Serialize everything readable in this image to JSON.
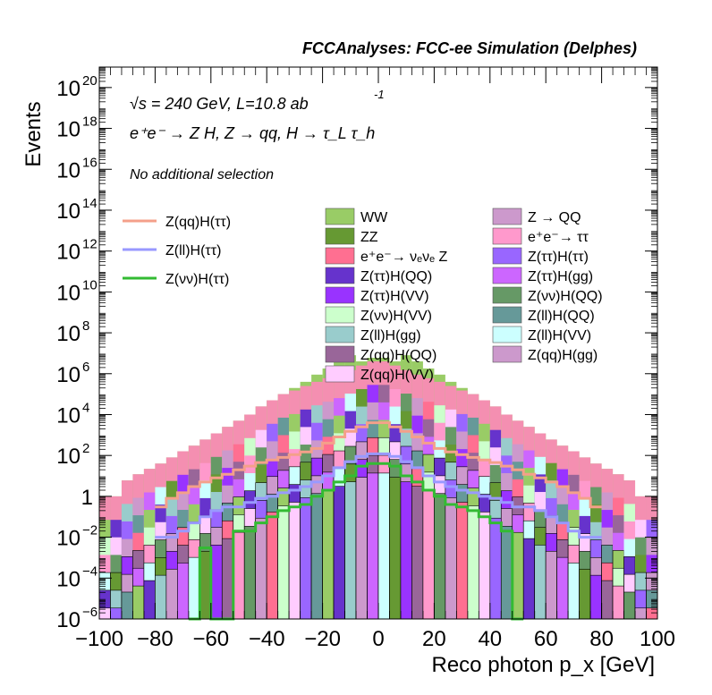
{
  "header": {
    "title": "FCCAnalyses: FCC-ee Simulation (Delphes)",
    "energy": "√s = 240 GeV, L=10.8 ab",
    "energy_sup": "-1",
    "process": "e⁺e⁻ → Z H, Z → qq, H → τ_L τ_h",
    "selection": "No additional selection"
  },
  "chart_data": {
    "type": "bar",
    "subtype": "stacked-histogram",
    "xlabel": "Reco photon p_x [GeV]",
    "ylabel": "Events",
    "xlim": [
      -100,
      100
    ],
    "ylim": [
      1e-06,
      1e+21
    ],
    "yscale": "log",
    "x_ticks": [
      "−100",
      "−80",
      "−60",
      "−40",
      "−20",
      "0",
      "20",
      "40",
      "60",
      "80",
      "100"
    ],
    "y_ticks": [
      {
        "base": "10",
        "exp": "20",
        "value": 1e+20
      },
      {
        "base": "10",
        "exp": "18",
        "value": 1e+18
      },
      {
        "base": "10",
        "exp": "16",
        "value": 1e+16
      },
      {
        "base": "10",
        "exp": "14",
        "value": 100000000000000.0
      },
      {
        "base": "10",
        "exp": "12",
        "value": 1000000000000.0
      },
      {
        "base": "10",
        "exp": "10",
        "value": 10000000000.0
      },
      {
        "base": "10",
        "exp": "8",
        "value": 100000000.0
      },
      {
        "base": "10",
        "exp": "6",
        "value": 1000000.0
      },
      {
        "base": "10",
        "exp": "4",
        "value": 10000.0
      },
      {
        "base": "10",
        "exp": "2",
        "value": 100.0
      },
      {
        "base": "1",
        "exp": "",
        "value": 1
      },
      {
        "base": "10",
        "exp": "−2",
        "value": 0.01
      },
      {
        "base": "10",
        "exp": "−4",
        "value": 0.0001
      },
      {
        "base": "10",
        "exp": "−6",
        "value": 1e-06
      }
    ],
    "bin_width": 4,
    "bin_centers": [
      -98,
      -94,
      -90,
      -86,
      -82,
      -78,
      -74,
      -70,
      -66,
      -62,
      -58,
      -54,
      -50,
      -46,
      -42,
      -38,
      -34,
      -30,
      -26,
      -22,
      -18,
      -14,
      -10,
      -6,
      -2,
      2,
      6,
      10,
      14,
      18,
      22,
      26,
      30,
      34,
      38,
      42,
      46,
      50,
      54,
      58,
      62,
      66,
      70,
      74,
      78,
      82,
      86,
      90,
      94,
      98
    ],
    "stack_totals": [
      1,
      1,
      6,
      12,
      22,
      40,
      80,
      160,
      300,
      600,
      1200,
      2500,
      5000,
      10000,
      25000,
      50000,
      100000,
      200000,
      400000,
      900000,
      1800000,
      4000000,
      8000000,
      4000000,
      6000000,
      6000000,
      4000000,
      8000000,
      4000000,
      1800000,
      900000,
      400000,
      200000,
      100000,
      50000,
      25000,
      10000,
      5000,
      2500,
      1200,
      600,
      300,
      160,
      80,
      40,
      22,
      12,
      6,
      1,
      1
    ],
    "background_fill": {
      "color": "#f48fb1",
      "values": [
        1,
        1,
        6,
        12,
        22,
        40,
        80,
        160,
        300,
        600,
        1200,
        2500,
        5000,
        10000,
        25000,
        50000,
        100000,
        150000,
        250000,
        400000,
        600000,
        900000,
        1500000,
        2500000,
        4000000,
        4000000,
        2500000,
        1500000,
        900000,
        600000,
        400000,
        250000,
        150000,
        100000,
        50000,
        25000,
        10000,
        5000,
        2500,
        1200,
        600,
        300,
        160,
        80,
        40,
        22,
        12,
        6,
        1,
        1
      ]
    },
    "stack_layers": [
      {
        "name": "WW",
        "color": "#99cc66"
      },
      {
        "name": "ZZ",
        "color": "#669933"
      },
      {
        "name": "e⁺e⁻→ νₑνₑ Z",
        "color": "#ff6f91"
      },
      {
        "name": "Z(ττ)H(QQ)",
        "color": "#6633cc"
      },
      {
        "name": "Z(ττ)H(VV)",
        "color": "#9933ff"
      },
      {
        "name": "Z(νν)H(VV)",
        "color": "#ccffcc"
      },
      {
        "name": "Z(ll)H(gg)",
        "color": "#99cccc"
      },
      {
        "name": "Z(qq)H(QQ)",
        "color": "#996699"
      },
      {
        "name": "Z(qq)H(VV)",
        "color": "#ffccff"
      },
      {
        "name": "Z → QQ",
        "color": "#cc99cc"
      },
      {
        "name": "e⁺e⁻→ ττ",
        "color": "#ff99cc"
      },
      {
        "name": "Z(ττ)H(ττ)",
        "color": "#9966ff"
      },
      {
        "name": "Z(ττ)H(gg)",
        "color": "#cc66ff"
      },
      {
        "name": "Z(νν)H(QQ)",
        "color": "#669966"
      },
      {
        "name": "Z(ll)H(QQ)",
        "color": "#669999"
      },
      {
        "name": "Z(ll)H(VV)",
        "color": "#ccffff"
      },
      {
        "name": "Z(qq)H(gg)",
        "color": "#cc99cc"
      }
    ],
    "signal_series": [
      {
        "name": "Z(qq)H(ττ)",
        "color": "#f4a08a",
        "values": [
          null,
          null,
          null,
          null,
          null,
          0.3,
          0.8,
          1.5,
          3,
          5,
          8,
          12,
          20,
          30,
          45,
          60,
          80,
          110,
          150,
          220,
          400,
          800,
          1500,
          2500,
          4000,
          4000,
          2500,
          1500,
          800,
          400,
          220,
          150,
          110,
          80,
          60,
          45,
          30,
          20,
          12,
          8,
          5,
          3,
          1.5,
          0.8,
          0.3,
          null,
          null,
          null,
          null,
          null
        ]
      },
      {
        "name": "Z(ll)H(ττ)",
        "color": "#9999ff",
        "values": [
          null,
          null,
          null,
          null,
          null,
          0.01,
          0.01,
          0.02,
          0.05,
          0.1,
          0.2,
          0.3,
          0.3,
          0.5,
          0.8,
          1,
          1.5,
          2,
          3,
          5,
          10,
          25,
          50,
          90,
          120,
          120,
          90,
          50,
          25,
          10,
          5,
          3,
          2,
          1.5,
          1,
          0.8,
          0.5,
          0.3,
          0.3,
          0.2,
          0.1,
          0.05,
          0.02,
          0.01,
          0.01,
          null,
          null,
          null,
          null,
          null
        ]
      },
      {
        "name": "Z(νν)H(ττ)",
        "color": "#33bb33",
        "values": [
          null,
          null,
          null,
          null,
          null,
          null,
          null,
          null,
          1e-06,
          0.003,
          1e-06,
          1e-06,
          0.02,
          0.02,
          0.05,
          0.1,
          0.2,
          0.3,
          0.4,
          1,
          2,
          5,
          10,
          30,
          40,
          40,
          30,
          10,
          5,
          2,
          1,
          0.4,
          0.3,
          0.2,
          0.1,
          0.05,
          0.02,
          1e-06,
          null,
          null,
          null,
          null,
          null,
          null,
          null,
          null,
          null,
          null,
          null,
          null
        ]
      }
    ],
    "legend": {
      "signals": [
        "Z(qq)H(ττ)",
        "Z(ll)H(ττ)",
        "Z(νν)H(ττ)"
      ],
      "col1": [
        {
          "name": "WW",
          "color": "#99cc66"
        },
        {
          "name": "ZZ",
          "color": "#669933"
        },
        {
          "name": "e⁺e⁻→ νₑνₑ Z",
          "color": "#ff6f91"
        },
        {
          "name": "Z(ττ)H(QQ)",
          "color": "#6633cc"
        },
        {
          "name": "Z(ττ)H(VV)",
          "color": "#9933ff"
        },
        {
          "name": "Z(νν)H(VV)",
          "color": "#ccffcc"
        },
        {
          "name": "Z(ll)H(gg)",
          "color": "#99cccc"
        },
        {
          "name": "Z(qq)H(QQ)",
          "color": "#996699"
        },
        {
          "name": "Z(qq)H(VV)",
          "color": "#ffccff"
        }
      ],
      "col2": [
        {
          "name": "Z → QQ",
          "color": "#cc99cc"
        },
        {
          "name": "e⁺e⁻→ ττ",
          "color": "#ff99cc"
        },
        {
          "name": "Z(ττ)H(ττ)",
          "color": "#9966ff"
        },
        {
          "name": "Z(ττ)H(gg)",
          "color": "#cc66ff"
        },
        {
          "name": "Z(νν)H(QQ)",
          "color": "#669966"
        },
        {
          "name": "Z(ll)H(QQ)",
          "color": "#669999"
        },
        {
          "name": "Z(ll)H(VV)",
          "color": "#ccffff"
        },
        {
          "name": "Z(qq)H(gg)",
          "color": "#cc99cc"
        }
      ]
    }
  }
}
